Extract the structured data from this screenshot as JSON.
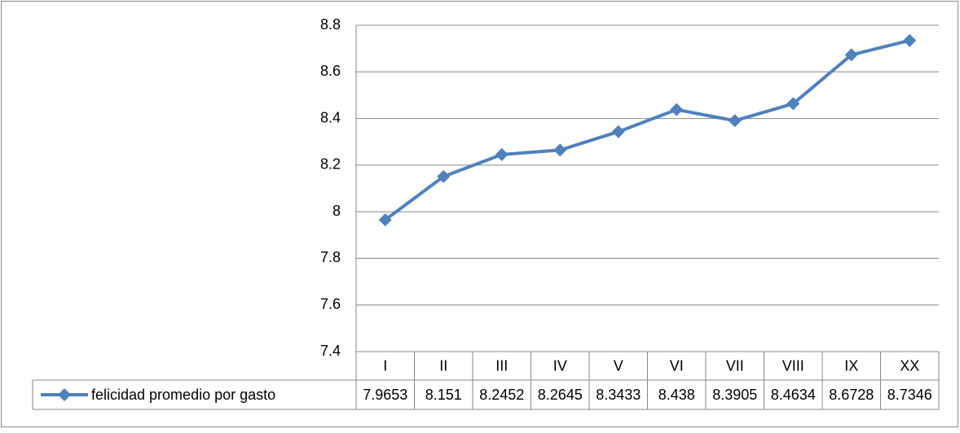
{
  "chart_data": {
    "type": "line",
    "categories": [
      "I",
      "II",
      "III",
      "IV",
      "V",
      "VI",
      "VII",
      "VIII",
      "IX",
      "XX"
    ],
    "series": [
      {
        "name": "felicidad promedio por gasto",
        "color": "#4f81bd",
        "values": [
          7.9653,
          8.151,
          8.2452,
          8.2645,
          8.3433,
          8.438,
          8.3905,
          8.4634,
          8.6728,
          8.7346
        ]
      }
    ],
    "ylim": [
      7.4,
      8.8
    ],
    "yticks": [
      7.4,
      7.6,
      7.8,
      8,
      8.2,
      8.4,
      8.6,
      8.8
    ],
    "grid": true,
    "data_table": true
  }
}
